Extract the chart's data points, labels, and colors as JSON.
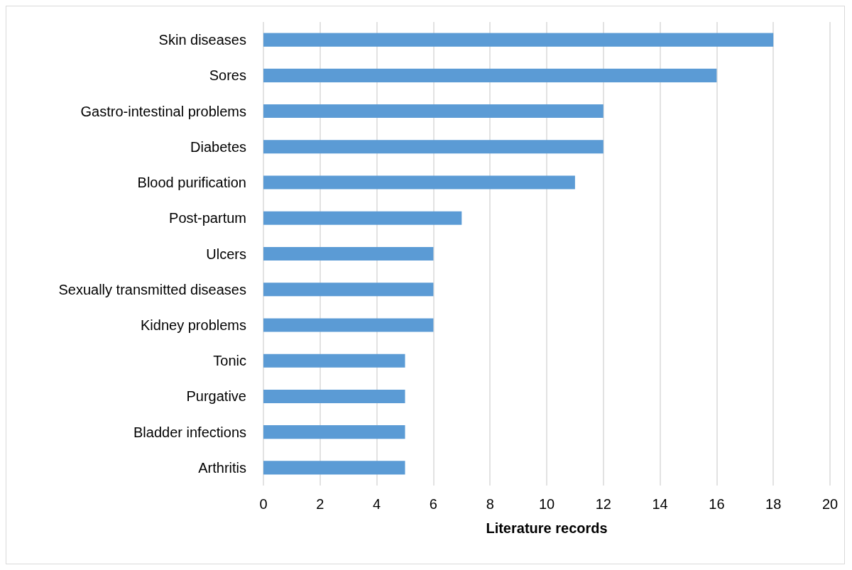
{
  "chart_data": {
    "type": "bar",
    "orientation": "horizontal",
    "xlabel": "Literature records",
    "categories": [
      "Skin diseases",
      "Sores",
      "Gastro-intestinal problems",
      "Diabetes",
      "Blood purification",
      "Post-partum",
      "Ulcers",
      "Sexually transmitted diseases",
      "Kidney problems",
      "Tonic",
      "Purgative",
      "Bladder infections",
      "Arthritis"
    ],
    "values": [
      18,
      16,
      12,
      12,
      11,
      7,
      6,
      6,
      6,
      5,
      5,
      5,
      5
    ],
    "color": "#5b9bd5",
    "xlim": [
      0,
      20
    ],
    "xticks": [
      0,
      2,
      4,
      6,
      8,
      10,
      12,
      14,
      16,
      18,
      20
    ],
    "grid": "x"
  }
}
